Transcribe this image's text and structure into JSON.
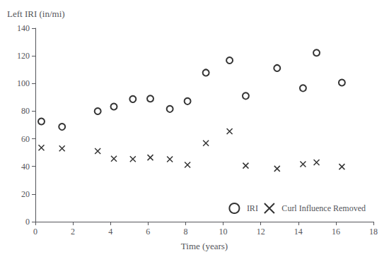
{
  "chart_data": {
    "type": "scatter",
    "xlabel": "Time (years)",
    "ylabel": "Left IRI (in/mi)",
    "x": [
      0.32,
      1.42,
      3.32,
      4.18,
      5.19,
      6.12,
      7.16,
      8.1,
      9.08,
      10.34,
      11.2,
      12.87,
      14.25,
      14.97,
      16.32
    ],
    "series": [
      {
        "name": "IRI",
        "color": "black",
        "marker": "circle",
        "values": [
          72.53,
          68.67,
          79.98,
          83.29,
          88.72,
          89.05,
          81.57,
          87.19,
          107.85,
          116.76,
          91.02,
          111.17,
          96.64,
          122.26,
          100.64
        ]
      },
      {
        "name": "Curl Influence Removed",
        "color": "black",
        "marker": "x",
        "values": [
          53.49,
          53.01,
          51.06,
          45.61,
          45.32,
          46.43,
          45.22,
          41.16,
          56.8,
          65.41,
          40.55,
          38.4,
          41.69,
          42.9,
          39.78
        ]
      }
    ],
    "xlim": [
      0,
      18
    ],
    "ylim": [
      0,
      140
    ],
    "xticks": [
      0,
      2,
      4,
      6,
      8,
      10,
      12,
      14,
      16,
      18
    ],
    "yticks": [
      0,
      20,
      40,
      60,
      80,
      100,
      120,
      140
    ],
    "grid": false,
    "legend": "lower right"
  }
}
